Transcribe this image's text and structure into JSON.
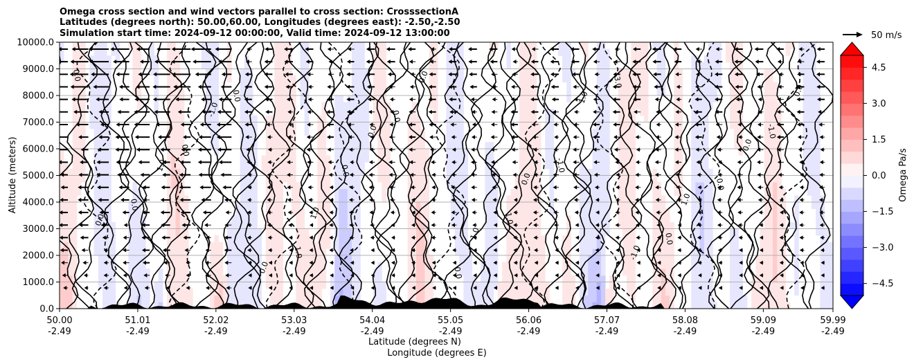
{
  "chart_data": {
    "type": "heatmap",
    "title_lines": [
      "Omega cross section and wind vectors parallel to cross section: CrosssectionA",
      "Latitudes (degrees north): 50.00,60.00, Longitudes (degrees east): -2.50,-2.50",
      "Simulation start time: 2024-09-12 00:00:00, Valid time: 2024-09-12 13:00:00"
    ],
    "ylabel": "Altitude (meters)",
    "xlabel": "Latitude (degrees N)",
    "xlabel2": "Longitude (degrees E)",
    "xlim": [
      50.0,
      59.99
    ],
    "ylim": [
      0,
      10000
    ],
    "y_ticks": [
      0,
      1000,
      2000,
      3000,
      4000,
      5000,
      6000,
      7000,
      8000,
      9000,
      10000
    ],
    "y_tick_labels": [
      "0.0",
      "1000.0",
      "2000.0",
      "3000.0",
      "4000.0",
      "5000.0",
      "6000.0",
      "7000.0",
      "8000.0",
      "9000.0",
      "10000.0"
    ],
    "x_ticks": [
      50.0,
      51.01,
      52.02,
      53.03,
      54.04,
      55.05,
      56.06,
      57.07,
      58.08,
      59.09,
      59.99
    ],
    "x_tick_labels": [
      "50.00",
      "51.01",
      "52.02",
      "53.03",
      "54.04",
      "55.05",
      "56.06",
      "57.07",
      "58.08",
      "59.09",
      "59.99"
    ],
    "x_tick_labels2": [
      "-2.49",
      "-2.49",
      "-2.49",
      "-2.49",
      "-2.49",
      "-2.49",
      "-2.49",
      "-2.49",
      "-2.49",
      "-2.49",
      "-2.49"
    ],
    "grid": "horizontal",
    "colorbar": {
      "label": "Omega Pa/s",
      "range": [
        -5,
        5
      ],
      "ticks": [
        4.5,
        3.0,
        1.5,
        0.0,
        -1.5,
        -3.0,
        -4.5
      ],
      "tick_labels": [
        "4.5",
        "3.0",
        "1.5",
        "0.0",
        "−1.5",
        "−3.0",
        "−4.5"
      ],
      "extend": "both",
      "negative_color": "#0000ff",
      "positive_color": "#ff0000"
    },
    "quiver_key": {
      "label": "50 m/s",
      "magnitude": 50
    },
    "contour_labels": [
      "0.0",
      "1.0",
      "-1.0",
      "0.0",
      "1.0",
      "0.0",
      "-1.0",
      "0.0",
      "1.0",
      "0.0",
      "0.0",
      "1.0",
      "0.0",
      "-1.0",
      "0.0",
      "1.0",
      "0.0",
      "0.0",
      "0.0",
      "1.0",
      "0.0",
      "-1.0",
      "0.0",
      "0.0",
      "3.0",
      "0.0",
      "0.0",
      "1.0"
    ],
    "contour_levels": [
      -1.0,
      0.0,
      1.0
    ],
    "terrain_color": "#000000"
  }
}
